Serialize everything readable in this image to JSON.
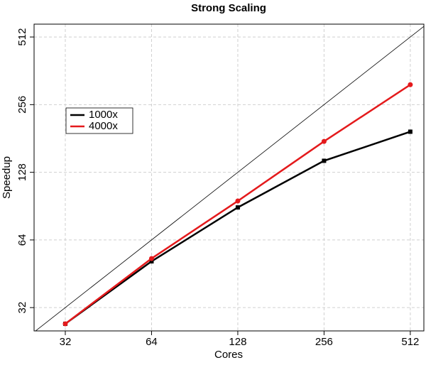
{
  "chart_data": {
    "type": "line",
    "title": "Strong Scaling",
    "xlabel": "Cores",
    "ylabel": "Speedup",
    "x": [
      32,
      64,
      128,
      256,
      512
    ],
    "series": [
      {
        "name": "1000x",
        "color": "#000000",
        "marker": "square",
        "values": [
          27.1,
          51.4,
          89.3,
          144,
          194
        ]
      },
      {
        "name": "4000x",
        "color": "#e41a1c",
        "marker": "circle",
        "values": [
          27.1,
          52.9,
          95.4,
          175.7,
          314
        ]
      }
    ],
    "xlim": [
      24.9,
      571
    ],
    "ylim": [
      25.2,
      584
    ],
    "xticks": [
      32,
      64,
      128,
      256,
      512
    ],
    "yticks": [
      32,
      64,
      128,
      256,
      512
    ],
    "xscale": "log",
    "yscale": "log",
    "grid": true,
    "diagonal": true,
    "legend": "upper left"
  }
}
